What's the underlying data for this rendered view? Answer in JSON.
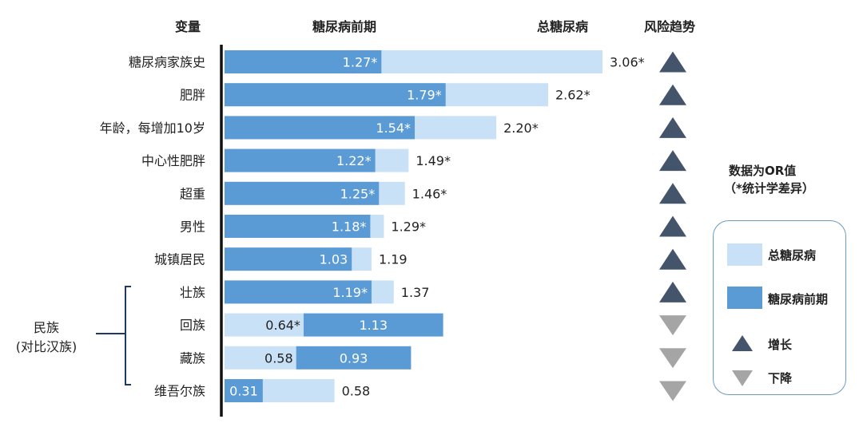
{
  "headers": {
    "variable": "变量",
    "prediabetes": "糖尿病前期",
    "total": "总糖尿病",
    "trend": "风险趋势"
  },
  "note": {
    "line1": "数据为OR值",
    "line2": "（*统计学差异）"
  },
  "legend": {
    "total_label": "总糖尿病",
    "prediabetes_label": "糖尿病前期",
    "increase_label": "增长",
    "decrease_label": "下降"
  },
  "group": {
    "label_line1": "民族",
    "label_line2": "(对比汉族)"
  },
  "colors": {
    "total": "#c9e1f6",
    "prediabetes": "#5b9bd5",
    "up_arrow": "#44546a",
    "down_arrow": "#a5a5a5"
  },
  "chart_data": {
    "type": "bar",
    "orientation": "horizontal",
    "series": [
      {
        "name": "总糖尿病",
        "color": "#c9e1f6"
      },
      {
        "name": "糖尿病前期",
        "color": "#5b9bd5"
      }
    ],
    "rows": [
      {
        "label": "糖尿病家族史",
        "total": 3.06,
        "total_text": "3.06*",
        "pre": 1.27,
        "pre_text": "1.27*",
        "trend": "up"
      },
      {
        "label": "肥胖",
        "total": 2.62,
        "total_text": "2.62*",
        "pre": 1.79,
        "pre_text": "1.79*",
        "trend": "up"
      },
      {
        "label": "年龄，每增加10岁",
        "total": 2.2,
        "total_text": "2.20*",
        "pre": 1.54,
        "pre_text": "1.54*",
        "trend": "up"
      },
      {
        "label": "中心性肥胖",
        "total": 1.49,
        "total_text": "1.49*",
        "pre": 1.22,
        "pre_text": "1.22*",
        "trend": "up"
      },
      {
        "label": "超重",
        "total": 1.46,
        "total_text": "1.46*",
        "pre": 1.25,
        "pre_text": "1.25*",
        "trend": "up"
      },
      {
        "label": "男性",
        "total": 1.29,
        "total_text": "1.29*",
        "pre": 1.18,
        "pre_text": "1.18*",
        "trend": "up"
      },
      {
        "label": "城镇居民",
        "total": 1.19,
        "total_text": "1.19",
        "pre": 1.03,
        "pre_text": "1.03",
        "trend": "up"
      },
      {
        "label": "壮族",
        "total": 1.37,
        "total_text": "1.37",
        "pre": 1.19,
        "pre_text": "1.19*",
        "trend": "up"
      },
      {
        "label": "回族",
        "total": 0.64,
        "total_text": "0.64*",
        "pre": 1.13,
        "pre_text": "1.13",
        "trend": "down"
      },
      {
        "label": "藏族",
        "total": 0.58,
        "total_text": "0.58",
        "pre": 0.93,
        "pre_text": "0.93",
        "trend": "down"
      },
      {
        "label": "维吾尔族",
        "total": 0.31,
        "total_text": "0.31",
        "pre": 0.58,
        "pre_text": "0.58",
        "trend": "down"
      }
    ],
    "xlim": [
      0,
      3.06
    ]
  }
}
